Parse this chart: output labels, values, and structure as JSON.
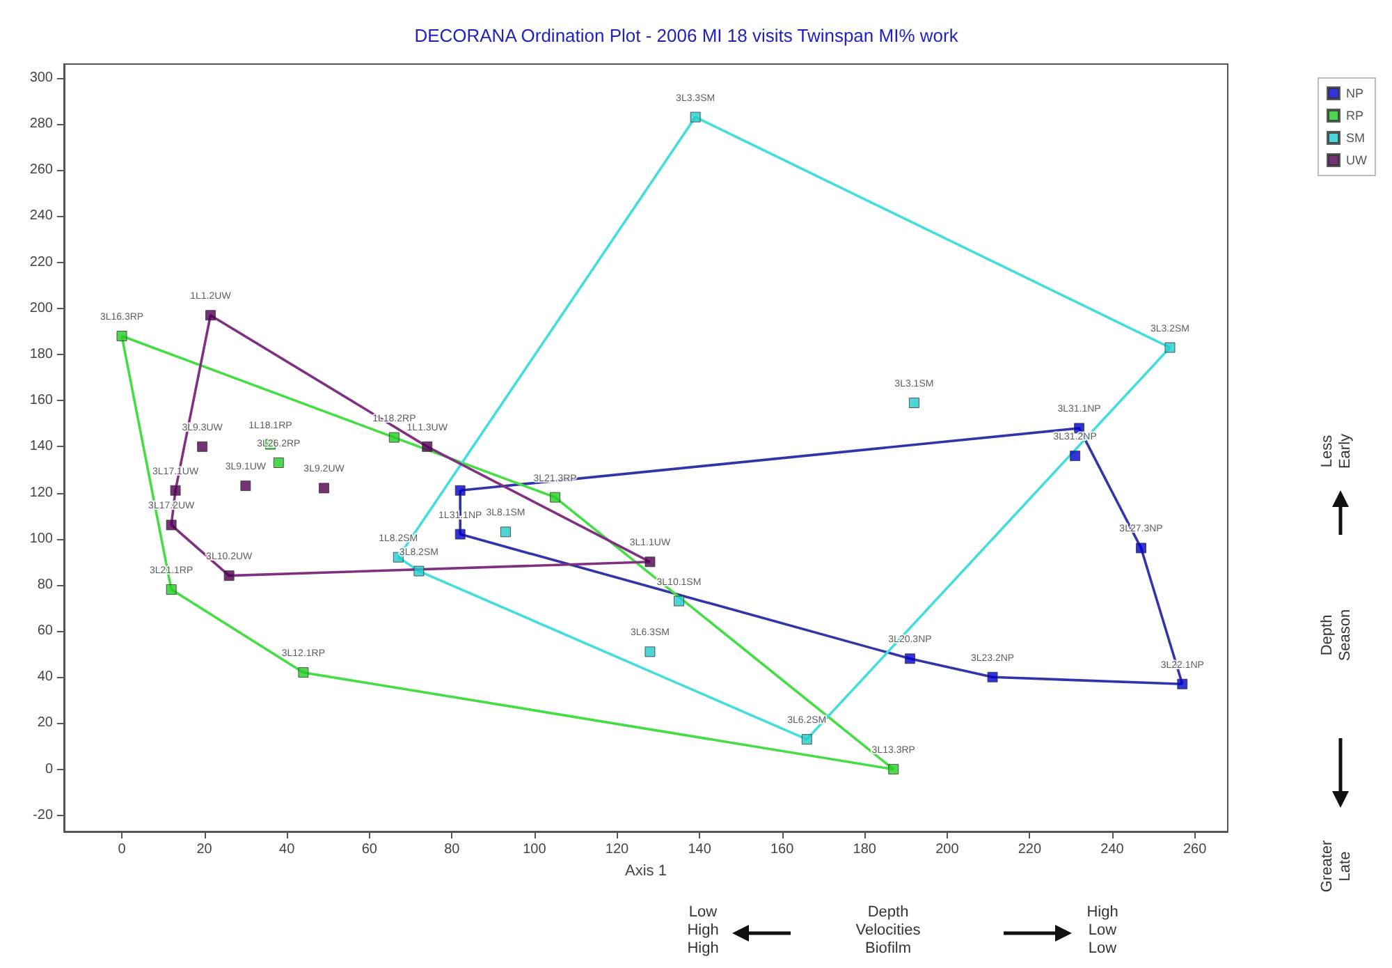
{
  "chart_data": {
    "type": "scatter",
    "title": "DECORANA Ordination Plot - 2006 MI 18 visits Twinspan MI% work",
    "xlabel": "Axis 1",
    "xlim": [
      -14,
      268
    ],
    "xticks": [
      0,
      20,
      40,
      60,
      80,
      100,
      120,
      140,
      160,
      180,
      200,
      220,
      240,
      260
    ],
    "ylim": [
      -27,
      306
    ],
    "yticks": [
      -20,
      0,
      20,
      40,
      60,
      80,
      100,
      120,
      140,
      160,
      180,
      200,
      220,
      240,
      260,
      280,
      300
    ],
    "grid": false,
    "legend": "top right",
    "marker": "square",
    "series": [
      {
        "name": "NP",
        "color": "#0000cc",
        "x": [
          82,
          82,
          232,
          231,
          247,
          257,
          211,
          191
        ],
        "values": [
          121,
          102,
          148,
          136,
          96,
          37,
          40,
          48
        ],
        "value_labels": [
          null,
          "1L31.1NP",
          "3L31.1NP",
          "3L31.2NP",
          "3L27.3NP",
          "3L22.1NP",
          "3L23.2NP",
          "3L20.3NP"
        ]
      },
      {
        "name": "RP",
        "color": "#22cc22",
        "x": [
          0,
          36,
          38,
          66,
          105,
          187,
          44,
          12
        ],
        "values": [
          188,
          141,
          133,
          144,
          118,
          0,
          42,
          78
        ],
        "value_labels": [
          "3L16.3RP",
          "1L18.1RP",
          "3L26.2RP",
          "1L18.2RP",
          "3L21.3RP",
          "3L13.3RP",
          "3L12.1RP",
          "3L21.1RP"
        ]
      },
      {
        "name": "SM",
        "color": "#22cccc",
        "x": [
          139,
          254,
          166,
          72,
          67,
          192,
          93,
          128,
          135
        ],
        "values": [
          283,
          183,
          13,
          86,
          92,
          159,
          103,
          51,
          73
        ],
        "value_labels": [
          "3L3.3SM",
          "3L3.2SM",
          "3L6.2SM",
          "3L8.2SM",
          "1L8.2SM",
          "3L3.1SM",
          "3L8.1SM",
          "3L6.3SM",
          "3L10.1SM"
        ]
      },
      {
        "name": "UW",
        "color": "#500050",
        "x": [
          21.5,
          74,
          128,
          26,
          12,
          13,
          19.5,
          30,
          49
        ],
        "values": [
          197,
          140,
          90,
          84,
          106,
          121,
          140,
          123,
          122
        ],
        "value_labels": [
          "1L1.2UW",
          "1L1.3UW",
          "3L1.1UW",
          "3L10.2UW",
          "3L17.2UW",
          "3L17.1UW",
          "3L9.3UW",
          "3L9.1UW",
          "3L9.2UW"
        ]
      },
      {
        "type": "line",
        "marker": "none",
        "color": "#3333aa",
        "x": [
          82,
          232,
          247,
          257
        ],
        "values": [
          121,
          148,
          96,
          37
        ]
      },
      {
        "type": "line",
        "marker": "none",
        "color": "#3333aa",
        "x": [
          82,
          82,
          191,
          211,
          257
        ],
        "values": [
          121,
          102,
          48,
          40,
          37
        ]
      },
      {
        "type": "line",
        "marker": "none",
        "color": "#44dd44",
        "x": [
          0,
          66,
          105,
          187
        ],
        "values": [
          188,
          144,
          118,
          0
        ]
      },
      {
        "type": "line",
        "marker": "none",
        "color": "#44dd44",
        "x": [
          0,
          12,
          44,
          187
        ],
        "values": [
          188,
          78,
          42,
          0
        ]
      },
      {
        "type": "line",
        "marker": "none",
        "color": "#44dddd",
        "x": [
          67,
          139,
          254
        ],
        "values": [
          92,
          283,
          183
        ]
      },
      {
        "type": "line",
        "marker": "none",
        "color": "#44dddd",
        "x": [
          67,
          72,
          166,
          254
        ],
        "values": [
          92,
          86,
          13,
          183
        ]
      },
      {
        "type": "line",
        "marker": "none",
        "color": "#803080",
        "x": [
          12,
          13,
          21.5,
          74,
          128
        ],
        "values": [
          106,
          121,
          197,
          140,
          90
        ]
      },
      {
        "type": "line",
        "marker": "none",
        "color": "#803080",
        "x": [
          12,
          26,
          128
        ],
        "values": [
          106,
          84,
          90
        ]
      }
    ],
    "annotations": [
      "Less Early",
      "Depth Season",
      "Greater Late",
      "Low High High",
      "Depth Velocities Biofilm",
      "High Low Low"
    ]
  }
}
